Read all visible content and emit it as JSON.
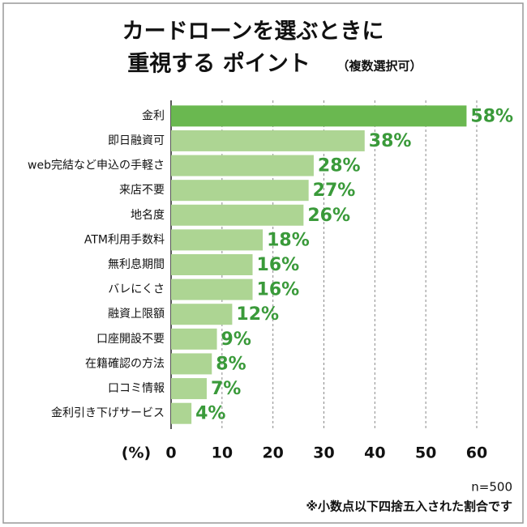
{
  "chart_data": {
    "type": "barh",
    "title": [
      "カードローンを選ぶときに",
      "重視する ポイント"
    ],
    "subtitle": "（複数選択可）",
    "categories": [
      "金利",
      "即日融資可",
      "web完結など申込の手軽さ",
      "来店不要",
      "地名度",
      "ATM利用手数料",
      "無利息期間",
      "バレにくさ",
      "融資上限額",
      "口座開設不要",
      "在籍確認の方法",
      "口コミ情報",
      "金利引き下げサービス"
    ],
    "values": [
      58,
      38,
      28,
      27,
      26,
      18,
      16,
      16,
      12,
      9,
      8,
      7,
      4
    ],
    "value_labels": [
      "58%",
      "38%",
      "28%",
      "27%",
      "26%",
      "18%",
      "16%",
      "16%",
      "12%",
      "9%",
      "8%",
      "7%",
      "4%"
    ],
    "colors": [
      "#6ab850",
      "#add593",
      "#add593",
      "#add593",
      "#add593",
      "#add593",
      "#add593",
      "#add593",
      "#add593",
      "#add593",
      "#add593",
      "#add593",
      "#add593"
    ],
    "xlabel": "(%)",
    "xlim": [
      0,
      60
    ],
    "xticks": [
      0,
      10,
      20,
      30,
      40,
      50,
      60
    ],
    "grid": true,
    "notes": [
      "n=500",
      "※小数点以下四捨五入された割合です"
    ]
  }
}
